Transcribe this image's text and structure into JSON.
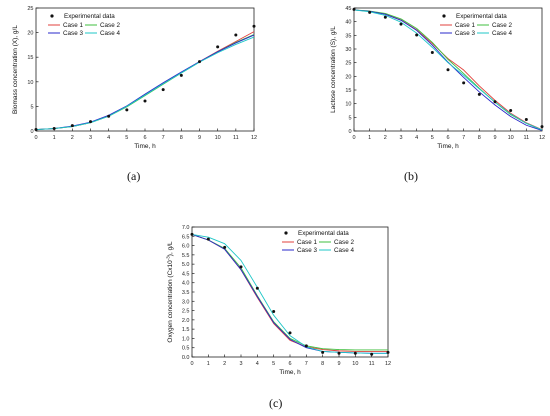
{
  "panel_labels": [
    "(a)",
    "(b)",
    "(c)"
  ],
  "chart_data": [
    {
      "type": "line",
      "panel": "(a)",
      "title": "",
      "xlabel": "Time, h",
      "ylabel": "Biomass concentration (X), g/L",
      "xlim": [
        0,
        12
      ],
      "ylim": [
        0,
        25
      ],
      "x_ticks": [
        0,
        1,
        2,
        3,
        4,
        5,
        6,
        7,
        8,
        9,
        10,
        11,
        12
      ],
      "y_ticks": [
        0,
        5,
        10,
        15,
        20,
        25
      ],
      "grid": false,
      "legend_position": "top-left",
      "legend": [
        "Experimental data",
        "Case 1",
        "Case 2",
        "Case 3",
        "Case 4"
      ],
      "experimental": {
        "name": "Experimental data",
        "x": [
          0,
          1,
          2,
          3,
          4,
          5,
          6,
          7,
          8,
          9,
          10,
          11,
          12
        ],
        "y": [
          0.3,
          0.5,
          1.1,
          1.9,
          3.0,
          4.3,
          6.1,
          8.4,
          11.3,
          14.1,
          17.1,
          19.5,
          21.3
        ]
      },
      "x": [
        0,
        1,
        2,
        3,
        4,
        5,
        6,
        7,
        8,
        9,
        10,
        11,
        12
      ],
      "series": [
        {
          "name": "Case 1",
          "color": "#e0413c",
          "values": [
            0.3,
            0.5,
            0.9,
            1.7,
            3.1,
            5.0,
            7.3,
            9.6,
            11.9,
            14.1,
            16.2,
            18.2,
            20.2
          ]
        },
        {
          "name": "Case 2",
          "color": "#3fbf3f",
          "values": [
            0.3,
            0.5,
            0.9,
            1.7,
            3.0,
            4.9,
            7.2,
            9.5,
            11.8,
            14.0,
            16.1,
            18.0,
            19.6
          ]
        },
        {
          "name": "Case 3",
          "color": "#2a2acb",
          "values": [
            0.3,
            0.5,
            1.0,
            1.8,
            3.2,
            5.1,
            7.5,
            9.8,
            12.0,
            14.1,
            16.1,
            17.9,
            19.5
          ]
        },
        {
          "name": "Case 4",
          "color": "#1fc7c7",
          "values": [
            0.3,
            0.5,
            0.9,
            1.7,
            3.0,
            5.0,
            7.3,
            9.6,
            11.8,
            14.0,
            15.9,
            17.6,
            19.1
          ]
        }
      ]
    },
    {
      "type": "line",
      "panel": "(b)",
      "title": "",
      "xlabel": "Time, h",
      "ylabel": "Lactose concentration (S), g/L",
      "xlim": [
        0,
        12
      ],
      "ylim": [
        0,
        45
      ],
      "x_ticks": [
        0,
        1,
        2,
        3,
        4,
        5,
        6,
        7,
        8,
        9,
        10,
        11,
        12
      ],
      "y_ticks": [
        0,
        5,
        10,
        15,
        20,
        25,
        30,
        35,
        40,
        45
      ],
      "grid": false,
      "legend_position": "top-right",
      "legend": [
        "Experimental data",
        "Case 1",
        "Case 2",
        "Case 3",
        "Case 4"
      ],
      "experimental": {
        "name": "Experimental data",
        "x": [
          0,
          1,
          2,
          3,
          4,
          5,
          6,
          7,
          8,
          9,
          10,
          11,
          12
        ],
        "y": [
          44.5,
          43.4,
          41.6,
          39.1,
          35.1,
          28.7,
          22.4,
          17.6,
          13.4,
          10.7,
          7.5,
          4.2,
          1.6
        ]
      },
      "x": [
        0,
        1,
        2,
        3,
        4,
        5,
        6,
        7,
        8,
        9,
        10,
        11,
        12
      ],
      "series": [
        {
          "name": "Case 1",
          "color": "#e0413c",
          "values": [
            44.3,
            43.8,
            42.8,
            40.6,
            37.0,
            32.0,
            26.5,
            22.3,
            16.5,
            11.2,
            6.5,
            3.0,
            0.5
          ]
        },
        {
          "name": "Case 2",
          "color": "#3fbf3f",
          "values": [
            44.3,
            43.9,
            43.0,
            41.0,
            37.5,
            32.4,
            26.2,
            21.0,
            15.6,
            10.5,
            6.0,
            2.8,
            0.3
          ]
        },
        {
          "name": "Case 3",
          "color": "#2a2acb",
          "values": [
            44.3,
            43.8,
            42.7,
            40.5,
            36.8,
            31.4,
            25.2,
            19.6,
            14.3,
            9.5,
            5.3,
            2.1,
            0.2
          ]
        },
        {
          "name": "Case 4",
          "color": "#1fc7c7",
          "values": [
            44.3,
            43.6,
            42.3,
            39.8,
            35.8,
            30.6,
            25.0,
            20.4,
            15.4,
            10.6,
            6.2,
            2.8,
            0.4
          ]
        }
      ]
    },
    {
      "type": "line",
      "panel": "(c)",
      "title": "",
      "xlabel": "Time, h",
      "ylabel_parts": [
        "Oxygen concentration (C",
        "x10",
        "-3",
        "), g/L"
      ],
      "xlim": [
        0,
        12
      ],
      "ylim": [
        0.0,
        7.0
      ],
      "x_ticks": [
        0,
        1,
        2,
        3,
        4,
        5,
        6,
        7,
        8,
        9,
        10,
        11,
        12
      ],
      "y_ticks": [
        "0.0",
        "0.5",
        "1.0",
        "1.5",
        "2.0",
        "2.5",
        "3.0",
        "3.5",
        "4.0",
        "4.5",
        "5.0",
        "5.5",
        "6.0",
        "6.5",
        "7.0"
      ],
      "grid": false,
      "legend_position": "top-right",
      "legend": [
        "Experimental data",
        "Case 1",
        "Case 2",
        "Case 3",
        "Case 4"
      ],
      "experimental": {
        "name": "Experimental data",
        "x": [
          0,
          1,
          2,
          3,
          4,
          5,
          6,
          7,
          8,
          9,
          10,
          11,
          12
        ],
        "y": [
          6.6,
          6.35,
          5.9,
          4.85,
          3.7,
          2.45,
          1.3,
          0.6,
          0.25,
          0.2,
          0.2,
          0.15,
          0.25
        ]
      },
      "x": [
        0,
        1,
        2,
        3,
        4,
        5,
        6,
        7,
        8,
        9,
        10,
        11,
        12
      ],
      "series": [
        {
          "name": "Case 1",
          "color": "#e0413c",
          "values": [
            6.6,
            6.3,
            5.8,
            4.7,
            3.2,
            1.8,
            0.9,
            0.55,
            0.4,
            0.33,
            0.3,
            0.3,
            0.3
          ]
        },
        {
          "name": "Case 2",
          "color": "#3fbf3f",
          "values": [
            6.6,
            6.3,
            5.85,
            4.8,
            3.3,
            1.9,
            1.0,
            0.6,
            0.45,
            0.4,
            0.38,
            0.38,
            0.38
          ]
        },
        {
          "name": "Case 3",
          "color": "#2a2acb",
          "values": [
            6.6,
            6.3,
            5.8,
            4.7,
            3.25,
            1.85,
            0.95,
            0.5,
            0.3,
            0.25,
            0.22,
            0.2,
            0.2
          ]
        },
        {
          "name": "Case 4",
          "color": "#1fc7c7",
          "values": [
            6.6,
            6.45,
            6.1,
            5.2,
            3.75,
            2.25,
            1.15,
            0.55,
            0.3,
            0.25,
            0.22,
            0.2,
            0.2
          ]
        }
      ]
    }
  ]
}
